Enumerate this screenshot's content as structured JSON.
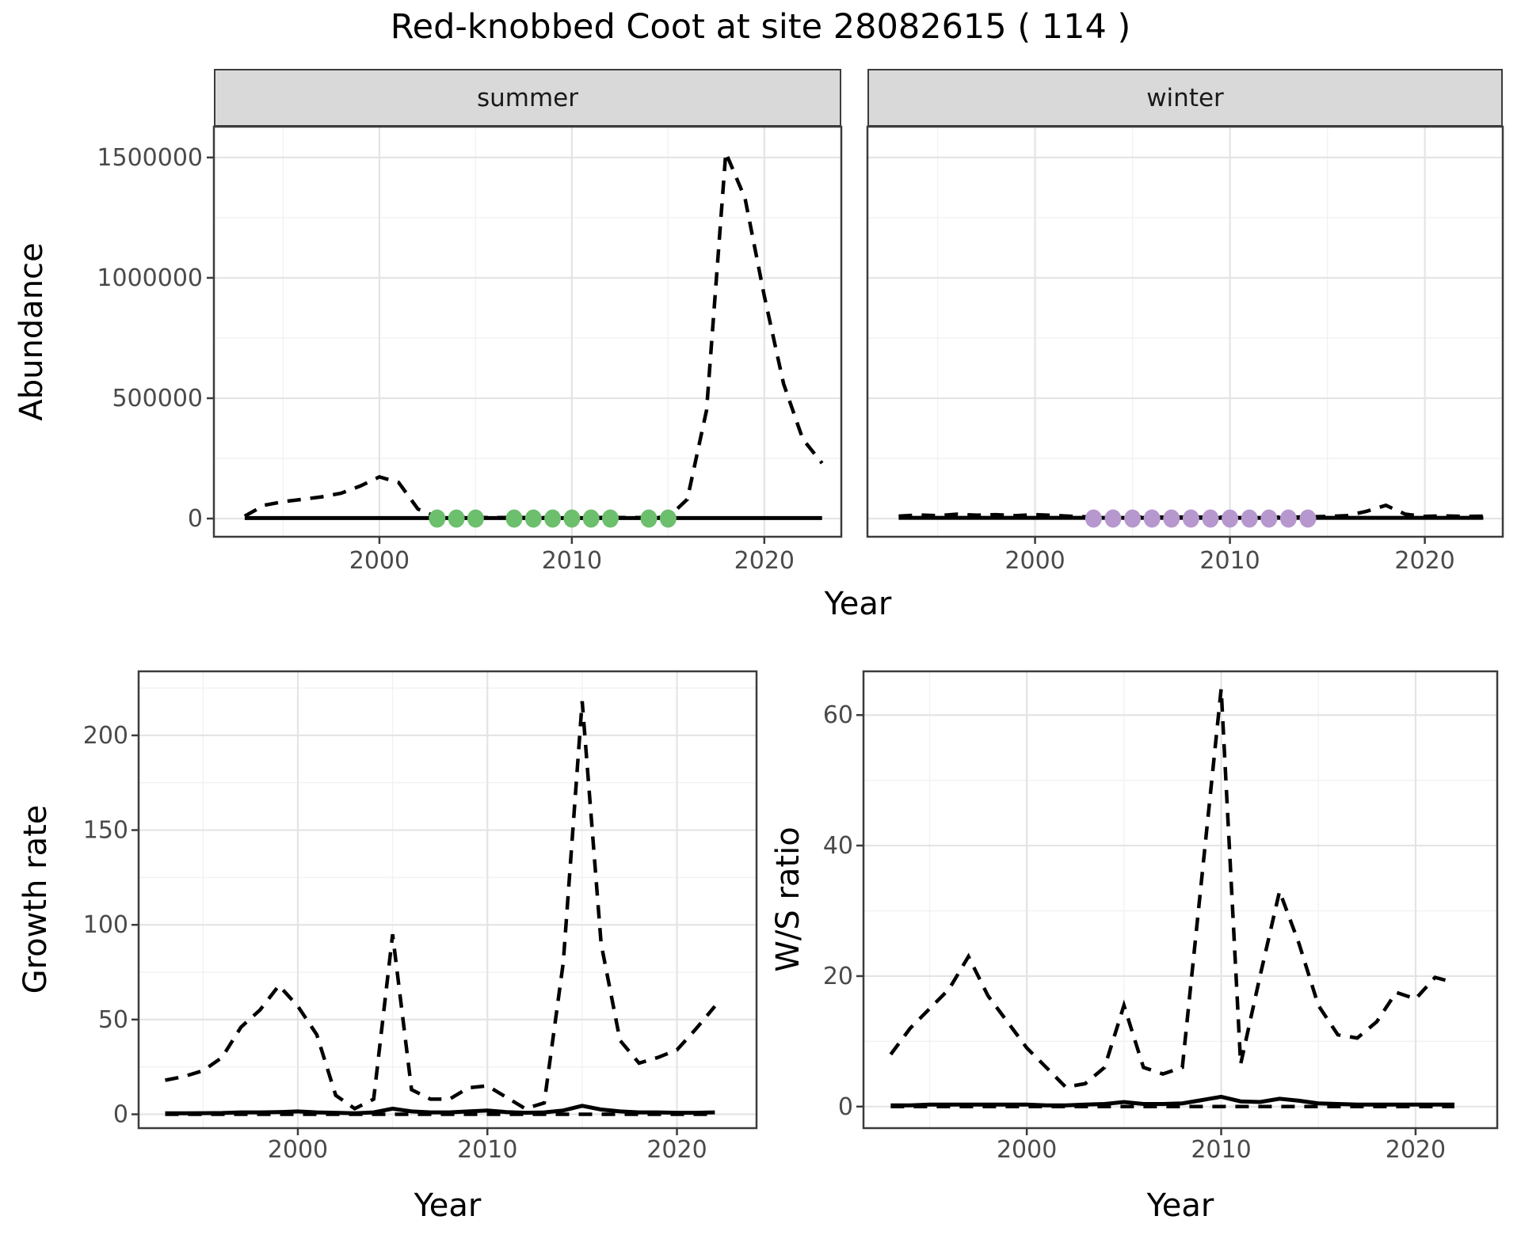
{
  "title": "Red-knobbed Coot at site 28082615 ( 114 )",
  "colors": {
    "summer_dot": "#6cbf6c",
    "winter_dot": "#b697ce",
    "line": "#000000",
    "strip_bg": "#d9d9d9",
    "grid_major": "#e4e4e4",
    "grid_minor": "#f2f2f2",
    "axis_text": "#4a4a4a",
    "panel_border": "#3c3c3c"
  },
  "top_figure": {
    "ylabel": "Abundance",
    "xlabel": "Year",
    "facets": [
      {
        "label": "summer"
      },
      {
        "label": "winter"
      }
    ]
  },
  "bottom_left_figure": {
    "ylabel": "Growth rate",
    "xlabel": "Year"
  },
  "bottom_right_figure": {
    "ylabel": "W/S ratio",
    "xlabel": "Year"
  },
  "chart_data": [
    {
      "id": "abundance-summer",
      "type": "line",
      "facet": "summer",
      "ylabel": "Abundance",
      "xlabel": "Year",
      "x_ticks": [
        2000,
        2010,
        2020
      ],
      "y_ticks": [
        0,
        500000,
        1000000,
        1500000
      ],
      "xlim": [
        1991.4,
        2024.0
      ],
      "ylim": [
        -75600,
        1628000
      ],
      "grid": true,
      "x": [
        1993,
        1994,
        1995,
        1996,
        1997,
        1998,
        1999,
        2000,
        2001,
        2002,
        2003,
        2004,
        2005,
        2006,
        2007,
        2008,
        2009,
        2010,
        2011,
        2012,
        2013,
        2014,
        2015,
        2016,
        2017,
        2018,
        2019,
        2020,
        2021,
        2022,
        2023
      ],
      "series": [
        {
          "name": "modelled-trend",
          "style": "dashed",
          "values": [
            10000,
            55000,
            70000,
            80000,
            90000,
            105000,
            135000,
            173000,
            150000,
            40000,
            6000,
            4000,
            4000,
            4000,
            4000,
            4000,
            4000,
            4000,
            4000,
            4000,
            4000,
            4000,
            5000,
            80000,
            450000,
            1520000,
            1330000,
            925000,
            560000,
            330000,
            230000
          ]
        },
        {
          "name": "observed",
          "style": "solid",
          "values": [
            2000,
            2000,
            2000,
            2000,
            2000,
            2000,
            2000,
            2000,
            2000,
            2000,
            2000,
            2000,
            2000,
            2000,
            2000,
            2000,
            2000,
            2000,
            2000,
            2000,
            2000,
            2000,
            2000,
            2000,
            2000,
            2000,
            2000,
            2000,
            2000,
            2000,
            2000
          ]
        }
      ],
      "dots": {
        "color_key": "summer_dot",
        "value": 0,
        "years": [
          2003,
          2004,
          2005,
          2007,
          2008,
          2009,
          2010,
          2011,
          2012,
          2014,
          2015
        ]
      }
    },
    {
      "id": "abundance-winter",
      "type": "line",
      "facet": "winter",
      "ylabel": "Abundance",
      "xlabel": "Year",
      "x_ticks": [
        2000,
        2010,
        2020
      ],
      "y_ticks": [
        0,
        500000,
        1000000,
        1500000
      ],
      "xlim": [
        1991.4,
        2024.0
      ],
      "ylim": [
        -75600,
        1628000
      ],
      "grid": true,
      "x": [
        1993,
        1994,
        1995,
        1996,
        1997,
        1998,
        1999,
        2000,
        2001,
        2002,
        2003,
        2004,
        2005,
        2006,
        2007,
        2008,
        2009,
        2010,
        2011,
        2012,
        2013,
        2014,
        2015,
        2016,
        2017,
        2018,
        2019,
        2020,
        2021,
        2022,
        2023
      ],
      "series": [
        {
          "name": "modelled-trend",
          "style": "dashed",
          "values": [
            10000,
            15000,
            12000,
            18000,
            14000,
            16000,
            12000,
            16000,
            13000,
            9000,
            6000,
            6000,
            6000,
            6000,
            6000,
            6000,
            6000,
            6000,
            6000,
            6000,
            6000,
            7000,
            9000,
            12000,
            30000,
            55000,
            18000,
            9000,
            11000,
            9000,
            10000
          ]
        },
        {
          "name": "observed",
          "style": "solid",
          "values": [
            3000,
            3000,
            3000,
            3000,
            3000,
            3000,
            3000,
            3000,
            3000,
            3000,
            3000,
            3000,
            3000,
            3000,
            3000,
            3000,
            3000,
            3000,
            3000,
            3000,
            3000,
            3000,
            3000,
            3000,
            3000,
            3000,
            3000,
            3000,
            3000,
            3000,
            3000
          ]
        }
      ],
      "dots": {
        "color_key": "winter_dot",
        "value": 0,
        "years": [
          2003,
          2004,
          2005,
          2006,
          2007,
          2008,
          2009,
          2010,
          2011,
          2012,
          2013,
          2014
        ]
      }
    },
    {
      "id": "growth-rate",
      "type": "line",
      "facet": null,
      "ylabel": "Growth rate",
      "xlabel": "Year",
      "x_ticks": [
        2000,
        2010,
        2020
      ],
      "y_ticks": [
        0,
        50,
        100,
        150,
        200
      ],
      "xlim": [
        1991.6,
        2024.2
      ],
      "ylim": [
        -7.3,
        233.8
      ],
      "grid": true,
      "x": [
        1993,
        1994,
        1995,
        1996,
        1997,
        1998,
        1999,
        2000,
        2001,
        2002,
        2003,
        2004,
        2005,
        2006,
        2007,
        2008,
        2009,
        2010,
        2011,
        2012,
        2013,
        2014,
        2015,
        2016,
        2017,
        2018,
        2019,
        2020,
        2021,
        2022
      ],
      "series": [
        {
          "name": "modelled-trend",
          "style": "dashed",
          "values": [
            18,
            20,
            23,
            30,
            46,
            55,
            68,
            57,
            42,
            10,
            3,
            8,
            95,
            13,
            8,
            8,
            14,
            15,
            9,
            3,
            6,
            80,
            218,
            90,
            39,
            27,
            30,
            34,
            45,
            57
          ]
        },
        {
          "name": "observed",
          "style": "solid",
          "values": [
            0.5,
            0.5,
            0.6,
            0.7,
            1,
            1,
            1.2,
            1.5,
            1,
            0.8,
            0.5,
            1,
            3,
            1.5,
            1,
            1,
            1.5,
            2,
            1.2,
            0.8,
            1,
            2,
            4.5,
            2.5,
            1.5,
            1,
            1,
            0.8,
            0.8,
            1
          ]
        },
        {
          "name": "zero-baseline",
          "style": "dashed",
          "values": [
            0,
            0,
            0,
            0,
            0,
            0,
            0,
            0,
            0,
            0,
            0,
            0,
            0,
            0,
            0,
            0,
            0,
            0,
            0,
            0,
            0,
            0,
            0,
            0,
            0,
            0,
            0,
            0,
            0,
            0
          ]
        }
      ],
      "dots": null
    },
    {
      "id": "ws-ratio",
      "type": "line",
      "facet": null,
      "ylabel": "W/S ratio",
      "xlabel": "Year",
      "x_ticks": [
        2000,
        2010,
        2020
      ],
      "y_ticks": [
        0,
        20,
        40,
        60
      ],
      "xlim": [
        1991.6,
        2024.2
      ],
      "ylim": [
        -3.3,
        66.7
      ],
      "grid": true,
      "x": [
        1993,
        1994,
        1995,
        1996,
        1997,
        1998,
        1999,
        2000,
        2001,
        2002,
        2003,
        2004,
        2005,
        2006,
        2007,
        2008,
        2009,
        2010,
        2011,
        2012,
        2013,
        2014,
        2015,
        2016,
        2017,
        2018,
        2019,
        2020,
        2021,
        2022
      ],
      "series": [
        {
          "name": "modelled-trend",
          "style": "dashed",
          "values": [
            8,
            12,
            15,
            18,
            23,
            17,
            13,
            9,
            6,
            3,
            3.5,
            6,
            15.5,
            6,
            5,
            6,
            35,
            64,
            6.5,
            20,
            33,
            25,
            15.5,
            11,
            10.5,
            13,
            17.5,
            16.5,
            19.8,
            19
          ]
        },
        {
          "name": "observed",
          "style": "solid",
          "values": [
            0.2,
            0.2,
            0.3,
            0.3,
            0.3,
            0.3,
            0.3,
            0.3,
            0.2,
            0.2,
            0.3,
            0.4,
            0.7,
            0.4,
            0.4,
            0.5,
            1.0,
            1.5,
            0.8,
            0.7,
            1.2,
            0.9,
            0.5,
            0.4,
            0.3,
            0.3,
            0.3,
            0.3,
            0.3,
            0.3
          ]
        },
        {
          "name": "zero-baseline",
          "style": "dashed",
          "values": [
            0,
            0,
            0,
            0,
            0,
            0,
            0,
            0,
            0,
            0,
            0,
            0,
            0,
            0,
            0,
            0,
            0,
            0,
            0,
            0,
            0,
            0,
            0,
            0,
            0,
            0,
            0,
            0,
            0,
            0
          ]
        }
      ],
      "dots": null
    }
  ]
}
